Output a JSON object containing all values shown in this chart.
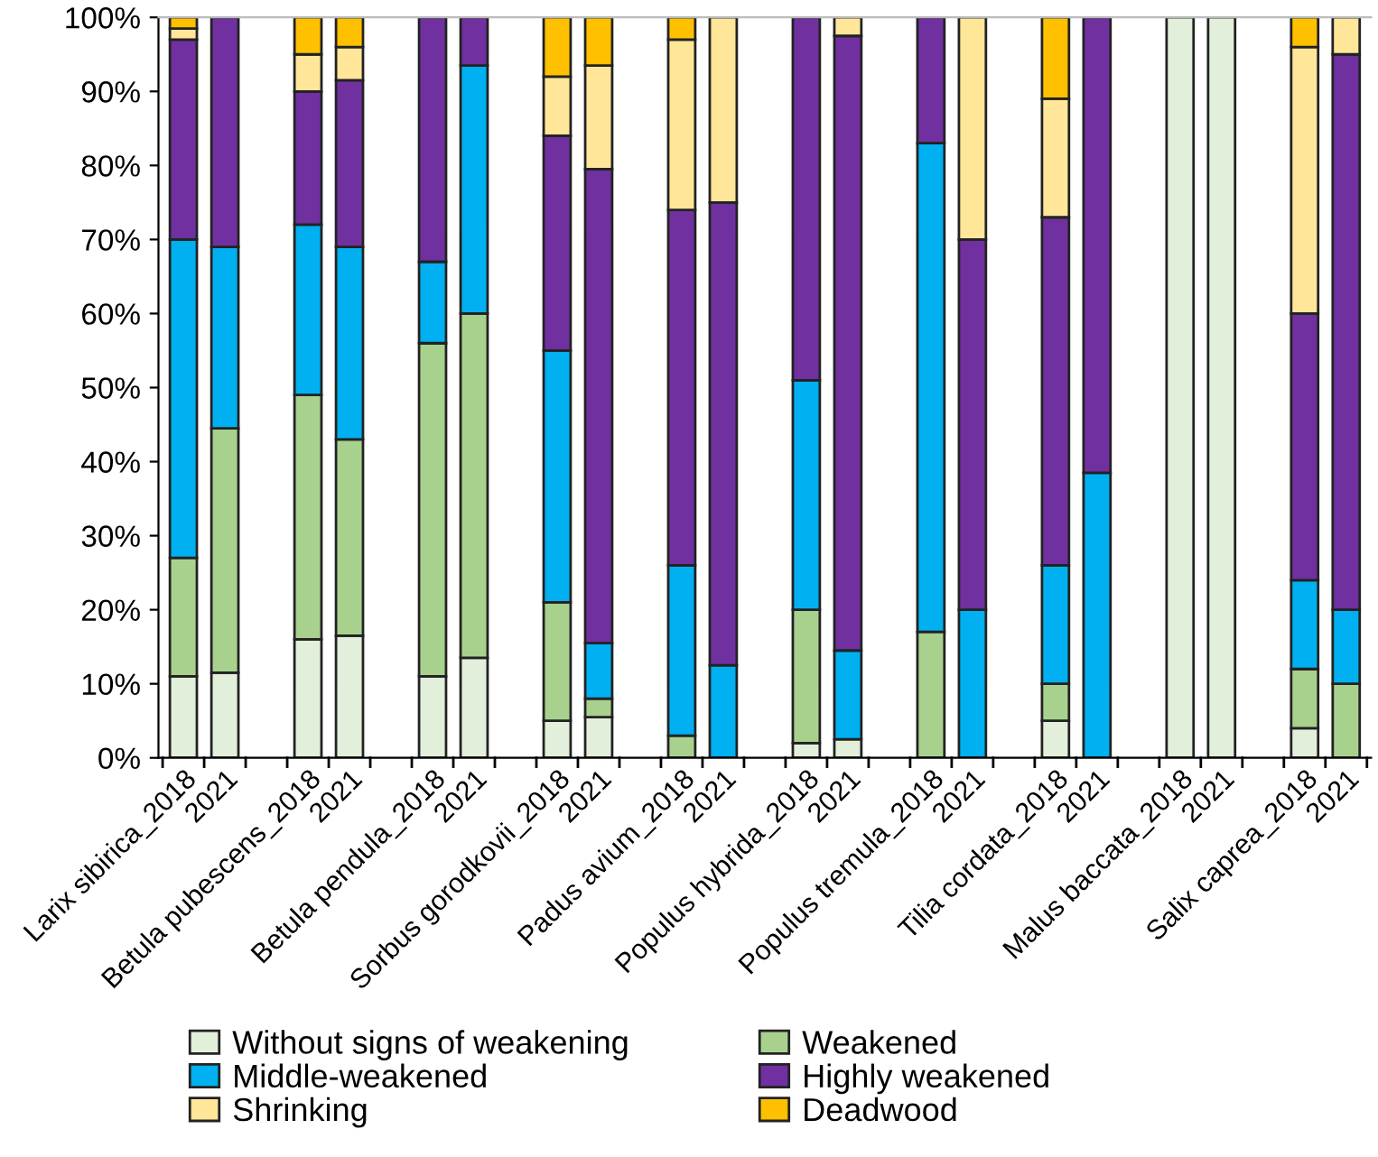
{
  "chart_data": {
    "type": "bar",
    "stacked": true,
    "categories": [
      "Larix sibirica_2018",
      "2021",
      null,
      "Betula pubescens_2018",
      "2021",
      null,
      "Betula pendula_2018",
      "2021",
      null,
      "Sorbus gorodkovii_2018",
      "2021",
      null,
      "Padus avium_2018",
      "2021",
      null,
      "Populus hybrida_2018",
      "2021",
      null,
      "Populus tremula_2018",
      "2021",
      null,
      "Tilia cordata_2018",
      "2021",
      null,
      "Malus baccata_2018",
      "2021",
      null,
      "Salix caprea_2018",
      "2021"
    ],
    "series": [
      {
        "name": "Without signs of weakening",
        "color": "#e2efda",
        "values": [
          11,
          11.5,
          null,
          16,
          16.5,
          null,
          11,
          13.5,
          null,
          5,
          5.5,
          null,
          0,
          0,
          null,
          2,
          2.5,
          null,
          0,
          0,
          null,
          5,
          0,
          null,
          100,
          100,
          null,
          4,
          0
        ]
      },
      {
        "name": "Weakened",
        "color": "#a9d18e",
        "values": [
          16,
          33,
          null,
          33,
          26.5,
          null,
          45,
          46.5,
          null,
          16,
          2.5,
          null,
          3,
          0,
          null,
          18,
          0,
          null,
          17,
          0,
          null,
          5,
          0,
          null,
          0,
          0,
          null,
          8,
          10
        ]
      },
      {
        "name": "Middle-weakened",
        "color": "#00b0f0",
        "values": [
          43,
          24.5,
          null,
          23,
          26,
          null,
          11,
          33.5,
          null,
          34,
          7.5,
          null,
          23,
          12.5,
          null,
          31,
          12,
          null,
          66,
          20,
          null,
          16,
          38.5,
          null,
          0,
          0,
          null,
          12,
          10
        ]
      },
      {
        "name": "Highly weakened",
        "color": "#7030a0",
        "values": [
          27,
          31,
          null,
          18,
          22.5,
          null,
          33,
          6.5,
          null,
          29,
          64,
          null,
          48,
          62.5,
          null,
          49,
          83,
          null,
          17,
          50,
          null,
          47,
          61.5,
          null,
          0,
          0,
          null,
          36,
          75
        ]
      },
      {
        "name": "Shrinking",
        "color": "#ffe699",
        "values": [
          1.5,
          0,
          null,
          5,
          4.5,
          null,
          0,
          0,
          null,
          8,
          14,
          null,
          23,
          25,
          null,
          0,
          2.5,
          null,
          0,
          30,
          null,
          16,
          0,
          null,
          0,
          0,
          null,
          36,
          5
        ]
      },
      {
        "name": "Deadwood",
        "color": "#ffc000",
        "values": [
          1.5,
          0,
          null,
          5,
          4,
          null,
          0,
          0,
          null,
          8,
          6.5,
          null,
          3,
          0,
          null,
          0,
          0,
          null,
          0,
          0,
          null,
          11,
          0,
          null,
          0,
          0,
          null,
          4,
          0
        ]
      }
    ],
    "ylim": [
      0,
      100
    ],
    "yticks": [
      {
        "value": 0,
        "label": "0%"
      },
      {
        "value": 10,
        "label": "10%"
      },
      {
        "value": 20,
        "label": "20%"
      },
      {
        "value": 30,
        "label": "30%"
      },
      {
        "value": 40,
        "label": "40%"
      },
      {
        "value": 50,
        "label": "50%"
      },
      {
        "value": 60,
        "label": "60%"
      },
      {
        "value": 70,
        "label": "70%"
      },
      {
        "value": 80,
        "label": "80%"
      },
      {
        "value": 90,
        "label": "90%"
      },
      {
        "value": 100,
        "label": "100%"
      }
    ],
    "grid": false,
    "legend": "bottom"
  }
}
